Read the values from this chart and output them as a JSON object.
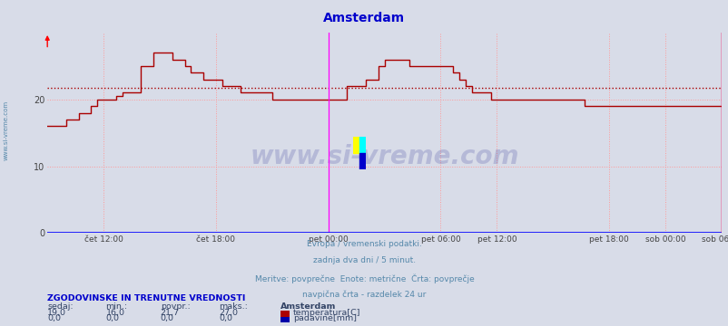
{
  "title": "Amsterdam",
  "title_color": "#0000cc",
  "bg_color": "#d8dce8",
  "plot_bg_color": "#d8dce8",
  "line_color": "#aa0000",
  "avg_line_color": "#aa0000",
  "avg_value": 21.7,
  "ylim": [
    0,
    30
  ],
  "yticks": [
    0,
    10,
    20
  ],
  "grid_color": "#ff9999",
  "x_labels": [
    "čet 12:00",
    "čet 18:00",
    "pet 00:00",
    "pet 06:00",
    "pet 12:00",
    "pet 18:00",
    "sob 00:00",
    "sob 06:00"
  ],
  "x_tick_norm": [
    0.0833,
    0.25,
    0.4167,
    0.5833,
    0.6667,
    0.8333,
    0.9167,
    1.0
  ],
  "vgrid_norm": [
    0.0833,
    0.25,
    0.4167,
    0.5833,
    0.6667,
    0.8333,
    0.9167,
    1.0
  ],
  "magenta_vlines": [
    0.4167,
    1.0
  ],
  "watermark": "www.si-vreme.com",
  "watermark_color": "#1a1a8c",
  "watermark_alpha": 0.18,
  "subtitle_lines": [
    "Evropa / vremenski podatki.",
    "zadnja dva dni / 5 minut.",
    "Meritve: povprečne  Enote: metrične  Črta: povprečje",
    "navpična črta - razdelek 24 ur"
  ],
  "subtitle_color": "#5588aa",
  "table_header": "ZGODOVINSKE IN TRENUTNE VREDNOSTI",
  "table_header_color": "#0000cc",
  "col_headers": [
    "sedaj:",
    "min.:",
    "povpr.:",
    "maks.:"
  ],
  "col_values_temp": [
    "19,0",
    "16,0",
    "21,7",
    "27,0"
  ],
  "col_values_rain": [
    "0,0",
    "0,0",
    "0,0",
    "0,0"
  ],
  "legend_city": "Amsterdam",
  "legend_temp_label": "temperatura[C]",
  "legend_rain_label": "padavine[mm]",
  "legend_temp_color": "#aa0000",
  "legend_rain_color": "#0000aa",
  "sidewatermark": "www.si-vreme.com",
  "sidewatermark_color": "#5588aa",
  "temp_data": [
    16.0,
    16.0,
    16.0,
    17.0,
    17.0,
    18.0,
    18.0,
    19.0,
    20.0,
    20.0,
    20.0,
    20.5,
    21.0,
    21.0,
    21.0,
    25.0,
    25.0,
    27.0,
    27.0,
    27.0,
    26.0,
    26.0,
    25.0,
    24.0,
    24.0,
    23.0,
    23.0,
    23.0,
    22.0,
    22.0,
    22.0,
    21.0,
    21.0,
    21.0,
    21.0,
    21.0,
    20.0,
    20.0,
    20.0,
    20.0,
    20.0,
    20.0,
    20.0,
    20.0,
    20.0,
    20.0,
    20.0,
    20.0,
    22.0,
    22.0,
    22.0,
    23.0,
    23.0,
    25.0,
    26.0,
    26.0,
    26.0,
    26.0,
    25.0,
    25.0,
    25.0,
    25.0,
    25.0,
    25.0,
    25.0,
    24.0,
    23.0,
    22.0,
    21.0,
    21.0,
    21.0,
    20.0,
    20.0,
    20.0,
    20.0,
    20.0,
    20.0,
    20.0,
    20.0,
    20.0,
    20.0,
    20.0,
    20.0,
    20.0,
    20.0,
    20.0,
    19.0,
    19.0,
    19.0,
    19.0,
    19.0,
    19.0,
    19.0,
    19.0,
    19.0,
    19.0,
    19.0,
    19.0,
    19.0,
    19.0,
    19.0,
    19.0,
    19.0,
    19.0,
    19.0,
    19.0,
    19.0,
    19.0,
    19.0
  ]
}
